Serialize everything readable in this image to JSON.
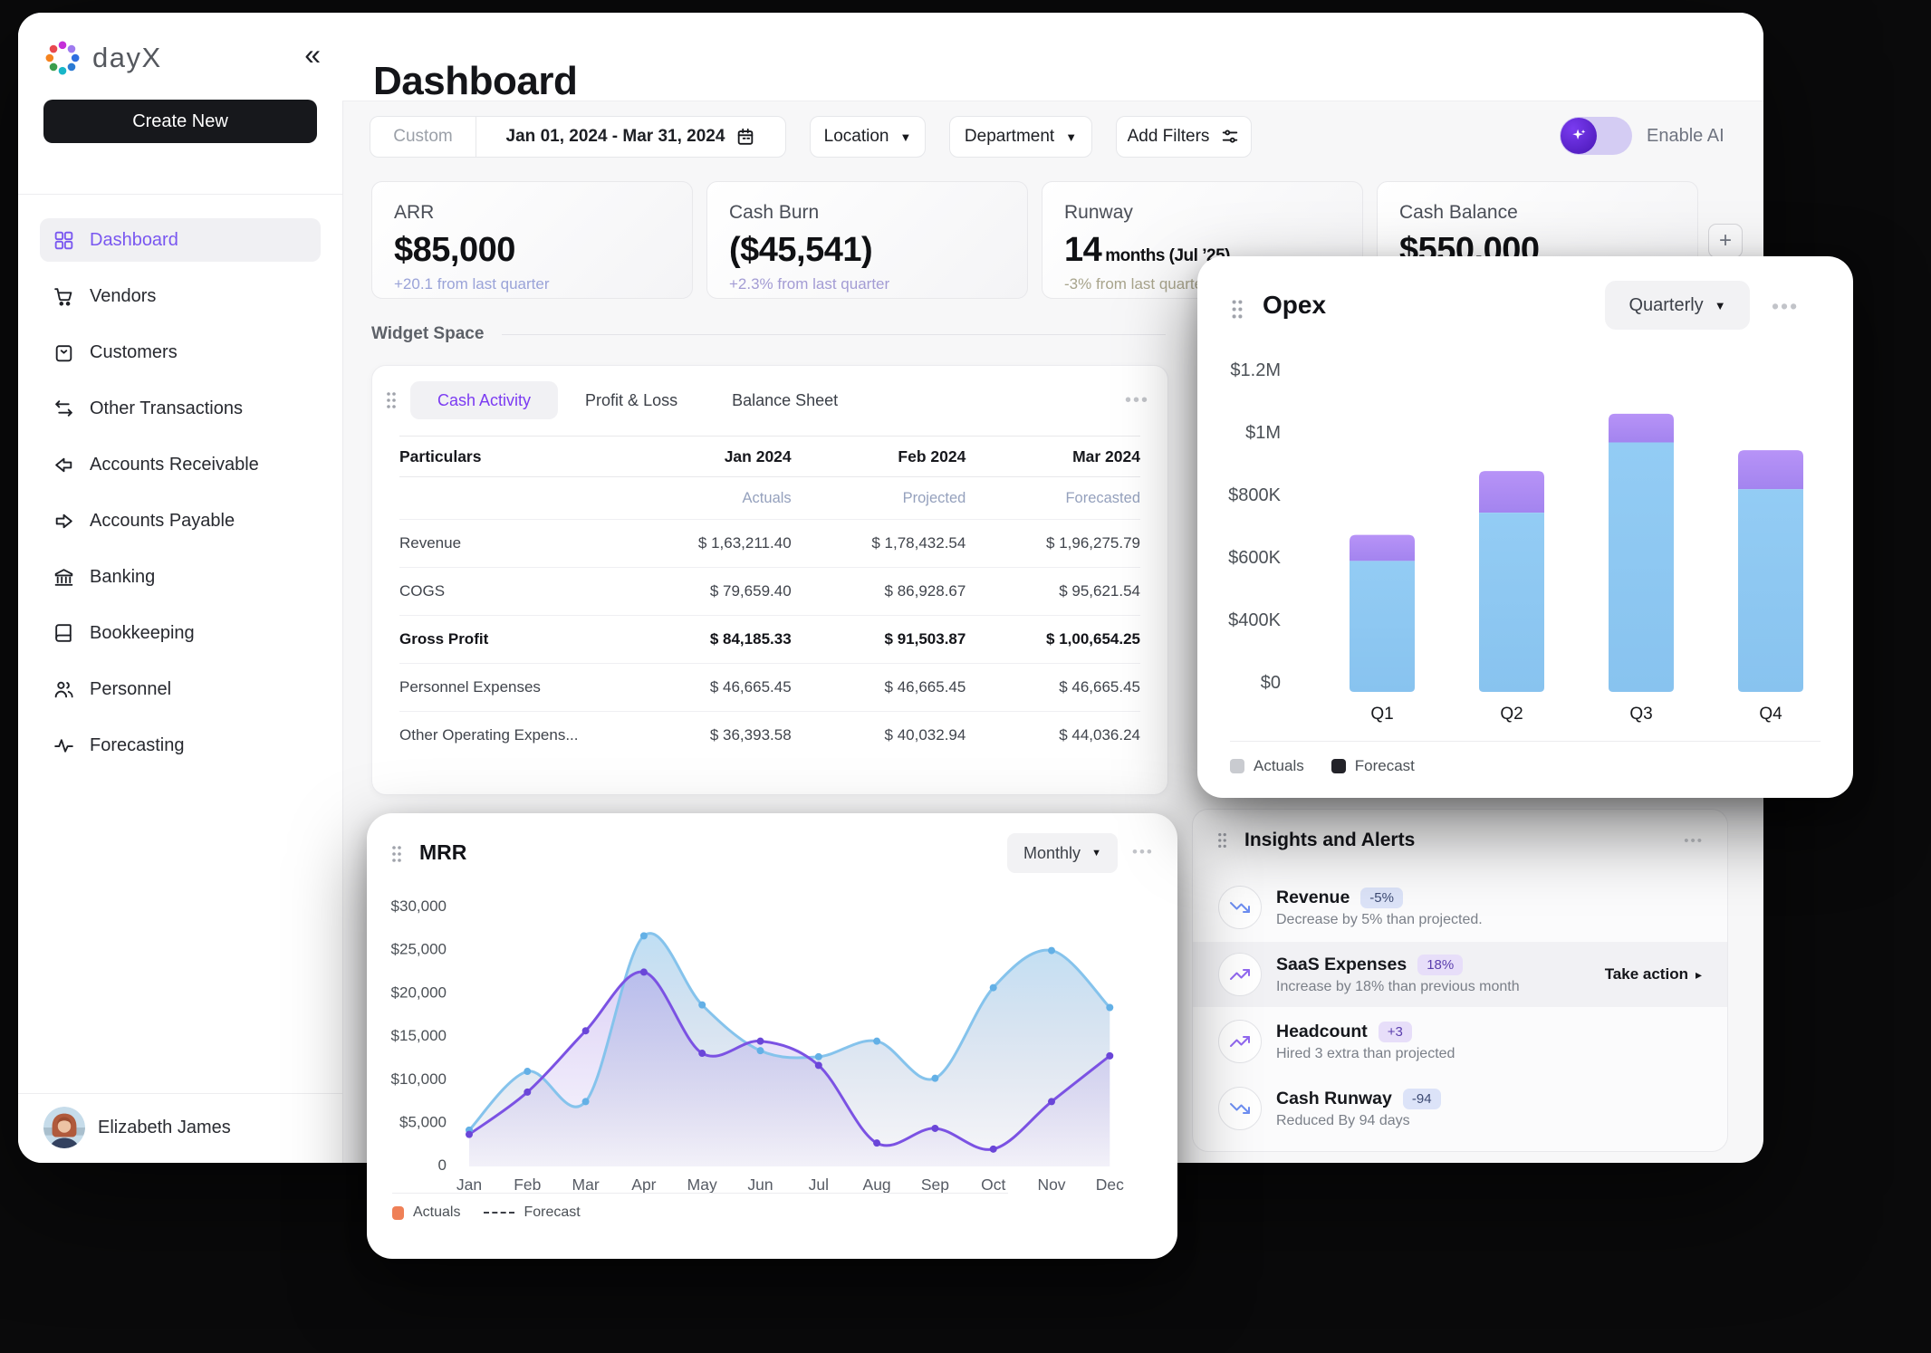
{
  "brand": {
    "name": "dayX",
    "logo_colors": [
      "#c42fd8",
      "#9f7bef",
      "#2f6fe0",
      "#2b7bd3",
      "#18b6c8",
      "#3a9e4e",
      "#f5831f",
      "#e8484f"
    ]
  },
  "sidebar": {
    "create_button": "Create New",
    "items": [
      {
        "label": "Dashboard",
        "active": true
      },
      {
        "label": "Vendors",
        "active": false
      },
      {
        "label": "Customers",
        "active": false
      },
      {
        "label": "Other Transactions",
        "active": false
      },
      {
        "label": "Accounts Receivable",
        "active": false
      },
      {
        "label": "Accounts Payable",
        "active": false
      },
      {
        "label": "Banking",
        "active": false
      },
      {
        "label": "Bookkeeping",
        "active": false
      },
      {
        "label": "Personnel",
        "active": false
      },
      {
        "label": "Forecasting",
        "active": false
      }
    ],
    "user": {
      "name": "Elizabeth James"
    }
  },
  "header": {
    "title": "Dashboard"
  },
  "filters": {
    "range_label": "Custom",
    "date_range": "Jan 01, 2024 - Mar 31, 2024",
    "location": "Location",
    "department": "Department",
    "add_filters": "Add Filters",
    "enable_ai": "Enable AI"
  },
  "kpis": {
    "add_button": "+",
    "items": [
      {
        "label": "ARR",
        "value": "$85,000",
        "suffix": "",
        "delta": "+20.1 from last quarter",
        "delta_color": "#9aa3d8"
      },
      {
        "label": "Cash Burn",
        "value": "($45,541)",
        "suffix": "",
        "delta": "+2.3% from last quarter",
        "delta_color": "#a39cd4"
      },
      {
        "label": "Runway",
        "value": "14",
        "suffix": "months (Jul ’25)",
        "delta": "-3% from last quarter",
        "delta_color": "#a8a48c"
      },
      {
        "label": "Cash Balance",
        "value": "$550.000",
        "suffix": "",
        "delta": "",
        "delta_color": "#9aa3d8"
      }
    ]
  },
  "widget_space_label": "Widget Space",
  "cash_widget": {
    "tabs": [
      "Cash Activity",
      "Profit & Loss",
      "Balance Sheet"
    ],
    "table": {
      "columns": [
        "Particulars",
        "Jan 2024",
        "Feb 2024",
        "Mar 2024"
      ],
      "subheaders": [
        "Actuals",
        "Projected",
        "Forecasted"
      ],
      "rows": [
        {
          "label": "Revenue",
          "values": [
            "$ 1,63,211.40",
            "$ 1,78,432.54",
            "$ 1,96,275.79"
          ]
        },
        {
          "label": "COGS",
          "values": [
            "$ 79,659.40",
            "$ 86,928.67",
            "$ 95,621.54"
          ]
        },
        {
          "label": "Gross Profit",
          "values": [
            "$ 84,185.33",
            "$ 91,503.87",
            "$ 1,00,654.25"
          ]
        },
        {
          "label": "Personnel Expenses",
          "values": [
            "$ 46,665.45",
            "$ 46,665.45",
            "$ 46,665.45"
          ]
        },
        {
          "label": "Other Operating Expens...",
          "values": [
            "$ 36,393.58",
            "$ 40,032.94",
            "$ 44,036.24"
          ]
        }
      ]
    }
  },
  "opex": {
    "title": "Opex",
    "period": "Quarterly",
    "legend": [
      "Actuals",
      "Forecast"
    ]
  },
  "mrr": {
    "title": "MRR",
    "period": "Monthly",
    "legend": [
      "Actuals",
      "Forecast"
    ]
  },
  "insights": {
    "title": "Insights and Alerts",
    "items": [
      {
        "title": "Revenue",
        "badge": "-5%",
        "tone": "blue",
        "trend": "down",
        "desc": "Decrease by 5% than projected.",
        "action": ""
      },
      {
        "title": "SaaS Expenses",
        "badge": "18%",
        "tone": "purple",
        "trend": "up",
        "desc": "Increase by 18% than previous month",
        "action": "Take action",
        "highlight": true
      },
      {
        "title": "Headcount",
        "badge": "+3",
        "tone": "purple",
        "trend": "up",
        "desc": "Hired 3 extra than projected",
        "action": ""
      },
      {
        "title": "Cash Runway",
        "badge": "-94",
        "tone": "blue",
        "trend": "down",
        "desc": "Reduced By 94 days",
        "action": ""
      }
    ]
  },
  "chart_data": [
    {
      "type": "bar",
      "title": "Opex",
      "period": "Quarterly",
      "stacked": true,
      "categories": [
        "Q1",
        "Q2",
        "Q3",
        "Q4"
      ],
      "series": [
        {
          "name": "Actuals",
          "color": "#8ec9f2",
          "values": [
            465000,
            650000,
            920000,
            740000
          ]
        },
        {
          "name": "Forecast",
          "color": "#ae8cf4",
          "values": [
            100000,
            160000,
            110000,
            150000
          ]
        }
      ],
      "ylim": [
        0,
        1200000
      ],
      "yticks": [
        "$1.2M",
        "$1M",
        "$800K",
        "$600K",
        "$400K",
        "$0"
      ],
      "legend_position": "bottom",
      "grid": false
    },
    {
      "type": "area",
      "title": "MRR",
      "period": "Monthly",
      "x": [
        "Jan",
        "Feb",
        "Mar",
        "Apr",
        "May",
        "Jun",
        "Jul",
        "Aug",
        "Sep",
        "Oct",
        "Nov",
        "Dec"
      ],
      "series": [
        {
          "name": "Actuals (blue)",
          "color": "#85c3ec",
          "values": [
            4000,
            10800,
            7300,
            26500,
            18500,
            13200,
            12500,
            14300,
            10000,
            20500,
            24800,
            18200
          ]
        },
        {
          "name": "Forecast (purple)",
          "color": "#7b52e3",
          "values": [
            3500,
            8400,
            15500,
            22300,
            12900,
            14300,
            11500,
            2500,
            4200,
            1800,
            7300,
            12600
          ]
        }
      ],
      "ylim": [
        0,
        30000
      ],
      "yticks": [
        "$30,000",
        "$25,000",
        "$20,000",
        "$15,000",
        "$10,000",
        "$5,000",
        "0"
      ],
      "legend_position": "bottom",
      "grid": false
    }
  ]
}
